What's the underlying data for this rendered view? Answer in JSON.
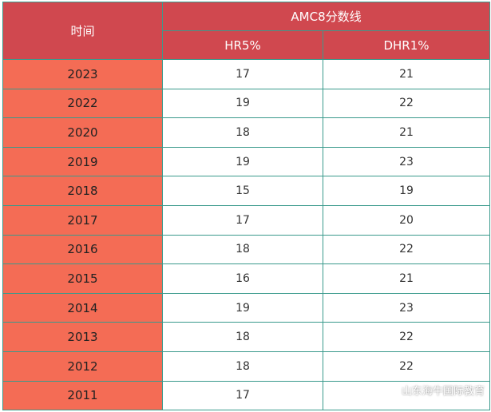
{
  "table": {
    "header_time": "时间",
    "header_group": "AMC8分数线",
    "header_hr": "HR5%",
    "header_dhr": "DHR1%",
    "rows": [
      {
        "year": "2023",
        "hr": "17",
        "dhr": "21"
      },
      {
        "year": "2022",
        "hr": "19",
        "dhr": "22"
      },
      {
        "year": "2020",
        "hr": "18",
        "dhr": "21"
      },
      {
        "year": "2019",
        "hr": "19",
        "dhr": "23"
      },
      {
        "year": "2018",
        "hr": "15",
        "dhr": "19"
      },
      {
        "year": "2017",
        "hr": "17",
        "dhr": "20"
      },
      {
        "year": "2016",
        "hr": "18",
        "dhr": "22"
      },
      {
        "year": "2015",
        "hr": "16",
        "dhr": "21"
      },
      {
        "year": "2014",
        "hr": "19",
        "dhr": "23"
      },
      {
        "year": "2013",
        "hr": "18",
        "dhr": "22"
      },
      {
        "year": "2012",
        "hr": "18",
        "dhr": "22"
      },
      {
        "year": "2011",
        "hr": "17",
        "dhr": ""
      }
    ]
  },
  "watermark": {
    "text": "山东海牛国际教育",
    "icon": "wechat-icon"
  },
  "colors": {
    "header_bg": "#d0484f",
    "year_bg": "#f46c55",
    "border": "#3a9a8c"
  }
}
